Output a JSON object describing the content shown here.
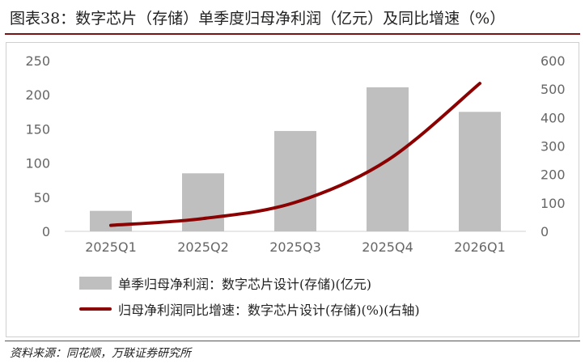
{
  "title": "图表38：数字芯片（存储）单季度归母净利润（亿元）及同比增速（%）",
  "source": "资料来源：同花顺，万联证券研究所",
  "colors": {
    "bar": "#bfbfbf",
    "line": "#8b0000",
    "axis_text": "#666666"
  },
  "legend": {
    "bar_label": "单季归母净利润：数字芯片设计(存储)(亿元)",
    "line_label": "归母净利润同比增速：数字芯片设计(存储)(%)(右轴)"
  },
  "chart_data": {
    "type": "bar",
    "categories": [
      "2025Q1",
      "2025Q2",
      "2025Q3",
      "2025Q4",
      "2026Q1"
    ],
    "series": [
      {
        "name": "单季归母净利润：数字芯片设计(存储)(亿元)",
        "type": "bar",
        "axis": "left",
        "values": [
          30,
          85,
          147,
          211,
          175
        ]
      },
      {
        "name": "归母净利润同比增速：数字芯片设计(存储)(%)(右轴)",
        "type": "line",
        "axis": "right",
        "values": [
          21,
          45,
          102,
          250,
          520
        ]
      }
    ],
    "y_left": {
      "min": 0,
      "max": 250,
      "ticks": [
        0,
        50,
        100,
        150,
        200,
        250
      ]
    },
    "y_right": {
      "min": 0,
      "max": 600,
      "ticks": [
        0,
        100,
        200,
        300,
        400,
        500,
        600
      ]
    },
    "grid": false,
    "legend_position": "bottom"
  }
}
